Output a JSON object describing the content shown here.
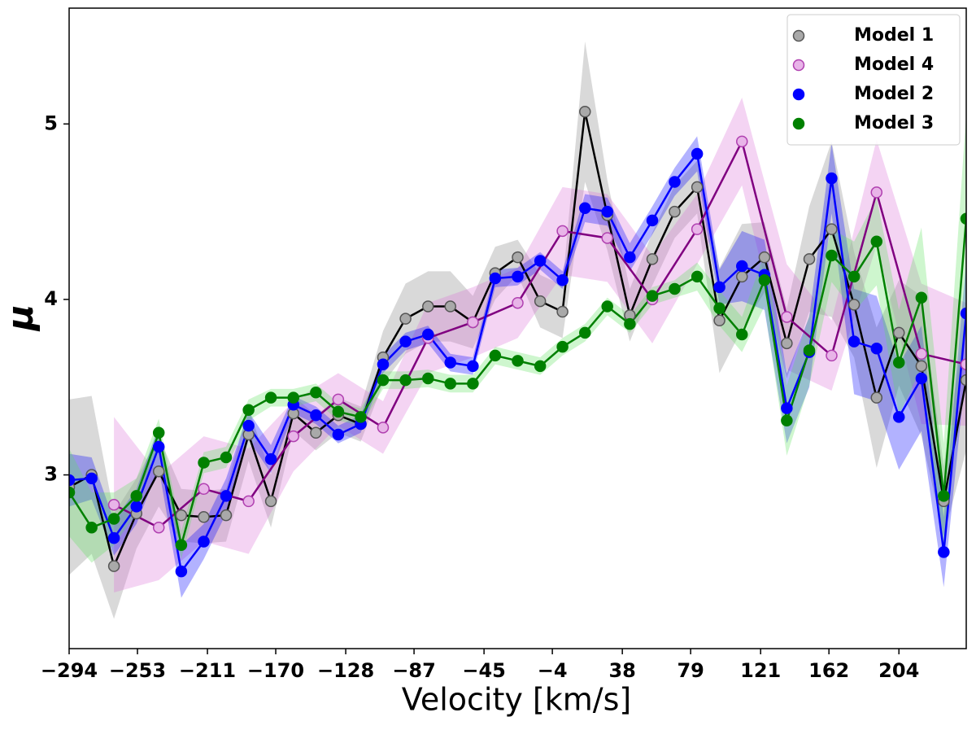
{
  "chart_data": {
    "type": "line",
    "xlabel": "Velocity [km/s]",
    "ylabel": "μ",
    "x": [
      -294,
      -280.5,
      -267.1,
      -253.6,
      -240.2,
      -226.7,
      -213.2,
      -199.8,
      -186.3,
      -172.9,
      -159.4,
      -145.9,
      -132.5,
      -119.0,
      -105.6,
      -92.1,
      -78.6,
      -65.2,
      -51.7,
      -38.3,
      -24.8,
      -11.3,
      2.1,
      15.6,
      29.0,
      42.5,
      56.0,
      69.4,
      82.9,
      96.3,
      109.8,
      123.3,
      136.7,
      150.2,
      163.6,
      177.1,
      190.6,
      204.0,
      217.5,
      230.9,
      244.4
    ],
    "series": [
      {
        "name": "Model 1",
        "color": "#000000",
        "marker_color": "#a9a9a9",
        "marker_edge": "#555555",
        "band_color": "#808080",
        "values": [
          2.93,
          3.0,
          2.48,
          2.78,
          3.02,
          2.77,
          2.76,
          2.77,
          3.23,
          2.85,
          3.35,
          3.24,
          3.34,
          3.29,
          3.67,
          3.89,
          3.96,
          3.96,
          3.87,
          4.15,
          4.24,
          3.99,
          3.93,
          5.07,
          4.48,
          3.91,
          4.23,
          4.5,
          4.64,
          3.88,
          4.13,
          4.24,
          3.75,
          4.23,
          4.4,
          3.97,
          3.44,
          3.81,
          3.62,
          2.85,
          3.54
        ],
        "errors": [
          0.5,
          0.45,
          0.3,
          0.2,
          0.2,
          0.15,
          0.15,
          0.15,
          0.15,
          0.15,
          0.1,
          0.1,
          0.1,
          0.1,
          0.15,
          0.2,
          0.2,
          0.2,
          0.15,
          0.15,
          0.1,
          0.15,
          0.15,
          0.4,
          0.2,
          0.15,
          0.15,
          0.15,
          0.15,
          0.3,
          0.3,
          0.2,
          0.2,
          0.3,
          0.5,
          0.3,
          0.4,
          0.3,
          0.4,
          0.2,
          0.4
        ]
      },
      {
        "name": "Model 4",
        "color": "#800080",
        "marker_color": "#e8b4e8",
        "marker_edge": "#b040b0",
        "band_color": "#da70d6",
        "x": [
          -267.1,
          -240.2,
          -213.2,
          -186.3,
          -159.4,
          -132.5,
          -105.6,
          -78.6,
          -51.7,
          -24.8,
          2.1,
          29.0,
          56.0,
          82.9,
          109.8,
          136.7,
          163.6,
          190.6,
          217.5,
          244.4
        ],
        "values": [
          2.83,
          2.7,
          2.92,
          2.85,
          3.22,
          3.43,
          3.27,
          3.78,
          3.87,
          3.98,
          4.39,
          4.35,
          4.0,
          4.4,
          4.9,
          3.9,
          3.68,
          4.61,
          3.69,
          3.63
        ],
        "errors": [
          0.5,
          0.3,
          0.3,
          0.3,
          0.2,
          0.15,
          0.15,
          0.2,
          0.2,
          0.2,
          0.25,
          0.25,
          0.25,
          0.2,
          0.25,
          0.3,
          0.2,
          0.3,
          0.4,
          0.35
        ]
      },
      {
        "name": "Model 2",
        "color": "#0000ff",
        "marker_color": "#0000ff",
        "marker_edge": "#0000ff",
        "band_color": "#0000ff",
        "values": [
          2.97,
          2.98,
          2.64,
          2.82,
          3.16,
          2.45,
          2.62,
          2.88,
          3.28,
          3.09,
          3.4,
          3.34,
          3.23,
          3.29,
          3.63,
          3.76,
          3.8,
          3.64,
          3.62,
          4.12,
          4.13,
          4.22,
          4.11,
          4.52,
          4.5,
          4.24,
          4.45,
          4.67,
          4.83,
          4.07,
          4.19,
          4.14,
          3.38,
          3.7,
          4.69,
          3.76,
          3.72,
          3.33,
          3.55,
          2.56,
          3.92
        ],
        "errors": [
          0.15,
          0.12,
          0.1,
          0.1,
          0.12,
          0.15,
          0.1,
          0.1,
          0.08,
          0.08,
          0.05,
          0.05,
          0.05,
          0.05,
          0.05,
          0.05,
          0.05,
          0.05,
          0.05,
          0.05,
          0.05,
          0.05,
          0.05,
          0.08,
          0.08,
          0.08,
          0.08,
          0.08,
          0.1,
          0.1,
          0.2,
          0.2,
          0.2,
          0.2,
          0.2,
          0.3,
          0.3,
          0.3,
          0.3,
          0.2,
          0.3
        ]
      },
      {
        "name": "Model 3",
        "color": "#008000",
        "marker_color": "#008000",
        "marker_edge": "#008000",
        "band_color": "#5ee05e",
        "values": [
          2.9,
          2.7,
          2.75,
          2.88,
          3.24,
          2.6,
          3.07,
          3.1,
          3.37,
          3.44,
          3.44,
          3.47,
          3.36,
          3.33,
          3.54,
          3.54,
          3.55,
          3.52,
          3.52,
          3.68,
          3.65,
          3.62,
          3.73,
          3.81,
          3.96,
          3.86,
          4.02,
          4.06,
          4.13,
          3.95,
          3.8,
          4.11,
          3.31,
          3.71,
          4.25,
          4.13,
          4.33,
          3.64,
          4.01,
          2.88,
          4.46
        ],
        "errors": [
          0.25,
          0.2,
          0.15,
          0.1,
          0.08,
          0.08,
          0.06,
          0.06,
          0.06,
          0.05,
          0.05,
          0.05,
          0.05,
          0.05,
          0.05,
          0.05,
          0.05,
          0.05,
          0.05,
          0.05,
          0.05,
          0.05,
          0.05,
          0.05,
          0.05,
          0.05,
          0.05,
          0.05,
          0.08,
          0.1,
          0.1,
          0.15,
          0.2,
          0.2,
          0.15,
          0.2,
          0.25,
          0.3,
          0.4,
          0.3,
          0.6
        ]
      }
    ],
    "xlim": [
      -294,
      244.4
    ],
    "ylim": [
      2.01,
      5.66
    ],
    "xticks": [
      {
        "value": -294,
        "label": "−294"
      },
      {
        "value": -253,
        "label": "−253"
      },
      {
        "value": -211,
        "label": "−211"
      },
      {
        "value": -170,
        "label": "−170"
      },
      {
        "value": -128,
        "label": "−128"
      },
      {
        "value": -87,
        "label": "−87"
      },
      {
        "value": -45,
        "label": "−45"
      },
      {
        "value": -4,
        "label": "−4"
      },
      38,
      79,
      121,
      162,
      204
    ],
    "yticks": [
      3,
      4,
      5
    ],
    "legend": "upper right",
    "grid": false
  }
}
